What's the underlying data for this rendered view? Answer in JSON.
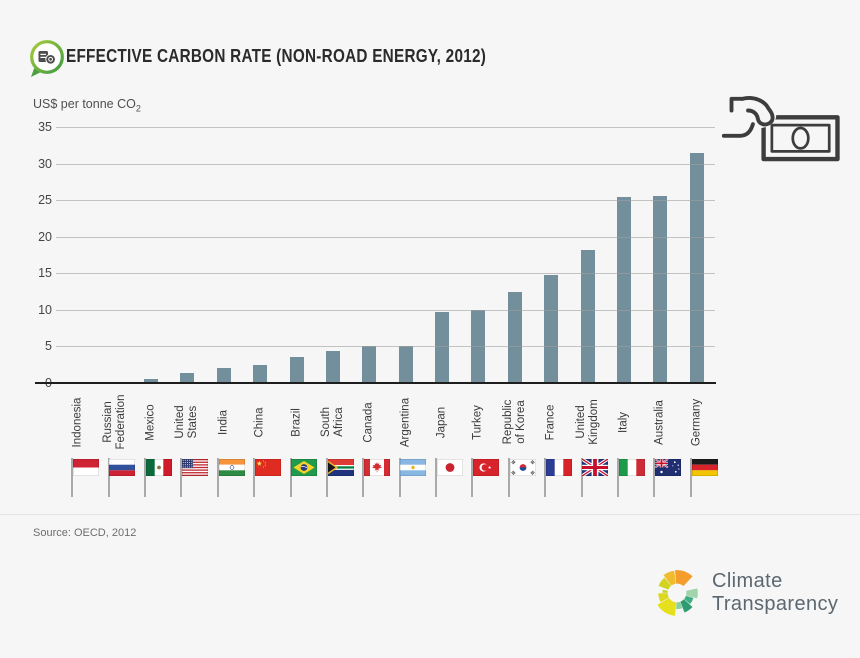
{
  "header": {
    "title": "EFFECTIVE CARBON RATE (NON-ROAD ENERGY, 2012)"
  },
  "chart_data": {
    "type": "bar",
    "title": "Effective Carbon Rate (Non-Road Energy, 2012)",
    "ylabel": "US$ per tonne CO",
    "ylabel_sub": "2",
    "ylim": [
      0,
      35
    ],
    "yticks": [
      35,
      30,
      25,
      20,
      15,
      10,
      5,
      0
    ],
    "grid": true,
    "legend": "none",
    "bar_color": "#748f9c",
    "categories": [
      "Indonesia",
      "Russian Federation",
      "Mexico",
      "United States",
      "India",
      "China",
      "Brazil",
      "South Africa",
      "Canada",
      "Argentina",
      "Japan",
      "Turkey",
      "Republic of Korea",
      "France",
      "United Kingdom",
      "Italy",
      "Australia",
      "Germany"
    ],
    "tick_label_lines": [
      [
        "Indonesia"
      ],
      [
        "Russian",
        "Federation"
      ],
      [
        "Mexico"
      ],
      [
        "United",
        "States"
      ],
      [
        "India"
      ],
      [
        "China"
      ],
      [
        "Brazil"
      ],
      [
        "South",
        "Africa"
      ],
      [
        "Canada"
      ],
      [
        "Argentina"
      ],
      [
        "Japan"
      ],
      [
        "Turkey"
      ],
      [
        "Republic",
        "of Korea"
      ],
      [
        "France"
      ],
      [
        "United",
        "Kingdom"
      ],
      [
        "Italy"
      ],
      [
        "Australia"
      ],
      [
        "Germany"
      ]
    ],
    "values": [
      0,
      0,
      0.6,
      1.3,
      2.0,
      2.4,
      3.5,
      4.4,
      5.0,
      5.1,
      9.7,
      10.0,
      12.5,
      14.7,
      18.2,
      25.4,
      25.6,
      31.4
    ],
    "flags": [
      "indonesia",
      "russia",
      "mexico",
      "usa",
      "india",
      "china",
      "brazil",
      "south-africa",
      "canada",
      "argentina",
      "japan",
      "turkey",
      "south-korea",
      "france",
      "uk",
      "italy",
      "australia",
      "germany"
    ]
  },
  "source": {
    "text": "Source: OECD, 2012"
  },
  "branding": {
    "line1": "Climate",
    "line2": "Transparency",
    "wheel_colors": [
      "#d3d321",
      "#f0bc2d",
      "#f59d2c",
      "#a2d4ac",
      "#3fae83",
      "#2e9c72",
      "#8bce9d",
      "#e6df1e",
      "#dcd71f",
      "#c8d22b"
    ]
  }
}
